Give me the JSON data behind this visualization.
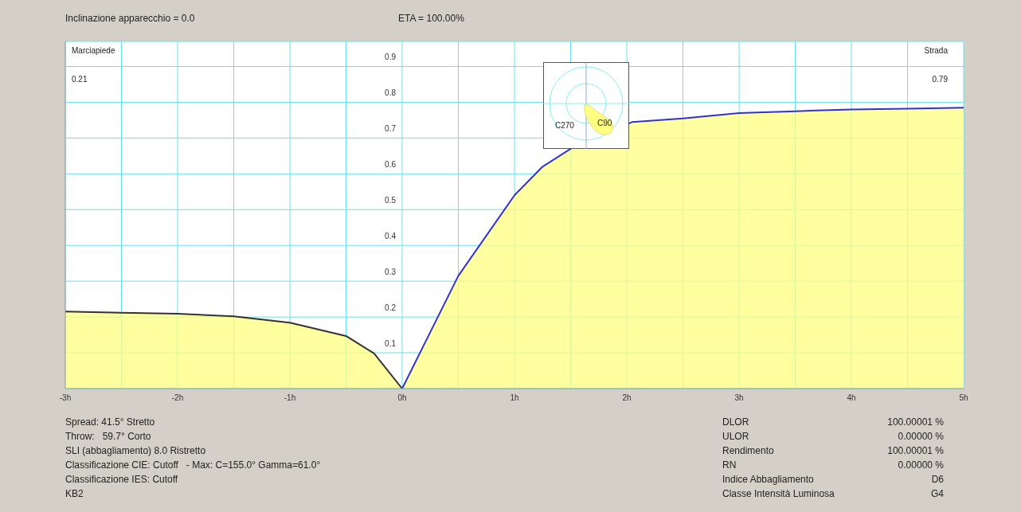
{
  "chart_data": {
    "type": "area",
    "series": [
      {
        "color": "#ffff80",
        "x": [
          -3,
          -2.5,
          -2,
          -1.5,
          -1,
          -0.5,
          -0.25,
          0
        ],
        "values": [
          0.215,
          0.212,
          0.209,
          0.202,
          0.184,
          0.147,
          0.098,
          0
        ]
      },
      {
        "color": "#ffff80",
        "x": [
          0,
          0.5,
          1,
          1.25,
          1.5,
          2.05,
          2.5,
          3,
          3.5,
          4,
          4.5,
          5
        ],
        "values": [
          0,
          0.315,
          0.54,
          0.62,
          0.67,
          0.745,
          0.755,
          0.77,
          0.775,
          0.78,
          0.782,
          0.785
        ]
      }
    ],
    "xlim": [
      -3,
      5
    ],
    "xticks": [
      {
        "value": -3,
        "label": "-3h"
      },
      {
        "value": -2.5,
        "label": null
      },
      {
        "value": -2,
        "label": "-2h"
      },
      {
        "value": -1.5,
        "label": null
      },
      {
        "value": -1,
        "label": "-1h"
      },
      {
        "value": -0.5,
        "label": null
      },
      {
        "value": 0,
        "label": "0h"
      },
      {
        "value": 0.5,
        "label": null
      },
      {
        "value": 1,
        "label": "1h"
      },
      {
        "value": 1.5,
        "label": null
      },
      {
        "value": 2,
        "label": "2h"
      },
      {
        "value": 2.5,
        "label": null
      },
      {
        "value": 3,
        "label": "3h"
      },
      {
        "value": 3.5,
        "label": null
      },
      {
        "value": 4,
        "label": "4h"
      },
      {
        "value": 4.5,
        "label": null
      },
      {
        "value": 5,
        "label": "5h"
      }
    ],
    "ylim": [
      0,
      0.97
    ],
    "yticks": [
      0.1,
      0.2,
      0.3,
      0.4,
      0.5,
      0.6,
      0.7,
      0.8,
      0.9
    ],
    "grid": true,
    "annotations": [
      "Inclinazione apparecchio = 0.0",
      "ETA = 100.00%",
      "Marciapiede",
      "Strada",
      "0.21",
      "0.79",
      "C270",
      "C90",
      "Spread: 41.5° Stretto",
      "Throw:   59.7° Corto",
      "SLI (abbagliamento) 8.0 Ristretto",
      "Classificazione CIE: Cutoff   - Max: C=155.0° Gamma=61.0°",
      "Classificazione IES: Cutoff",
      "KB2",
      "DLOR",
      "100.00001 %",
      "ULOR",
      "0.00000 %",
      "Rendimento",
      "100.00001 %",
      "RN",
      "0.00000 %",
      "Indice Abbagliamento",
      "D6",
      "Classe Intensità Luminosa",
      "G4"
    ]
  }
}
